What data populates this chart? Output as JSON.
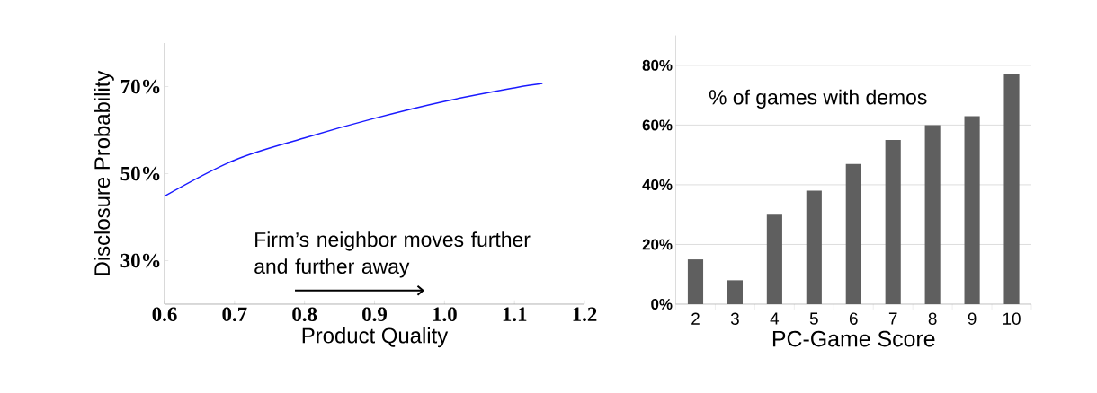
{
  "chart_data": [
    {
      "type": "line",
      "xlabel": "Product Quality",
      "ylabel": "Disclosure Probability",
      "color": "#1a1aff",
      "x": [
        0.6,
        0.7,
        0.8,
        0.9,
        1.0,
        1.1,
        1.14
      ],
      "values": [
        44.8,
        53.1,
        58.2,
        62.7,
        66.6,
        69.7,
        70.7
      ],
      "xlim": [
        0.6,
        1.2
      ],
      "ylim": [
        20,
        80
      ],
      "xticks": [
        0.6,
        0.7,
        0.8,
        0.9,
        {
          "value": 1.0,
          "label": "1.0"
        },
        1.1,
        1.2
      ],
      "yticks": [
        {
          "value": 30,
          "label": "30%"
        },
        {
          "value": 50,
          "label": "50%"
        },
        {
          "value": 70,
          "label": "70%"
        }
      ],
      "annotations": [
        "Firm’s neighbor moves further and further away"
      ]
    },
    {
      "type": "bar",
      "xlabel": "PC-Game Score",
      "color": "#5f5f5f",
      "grid": "y",
      "categories": [
        "2",
        "3",
        "4",
        "5",
        "6",
        "7",
        "8",
        "9",
        "10"
      ],
      "values": [
        15,
        8,
        30,
        38,
        47,
        55,
        60,
        63,
        77
      ],
      "ylim": [
        0,
        90
      ],
      "yticks": [
        {
          "value": 0,
          "label": "0%"
        },
        {
          "value": 20,
          "label": "20%"
        },
        {
          "value": 40,
          "label": "40%"
        },
        {
          "value": 60,
          "label": "60%"
        },
        {
          "value": 80,
          "label": "80%"
        }
      ],
      "annotations": [
        "% of games with demos"
      ]
    }
  ]
}
